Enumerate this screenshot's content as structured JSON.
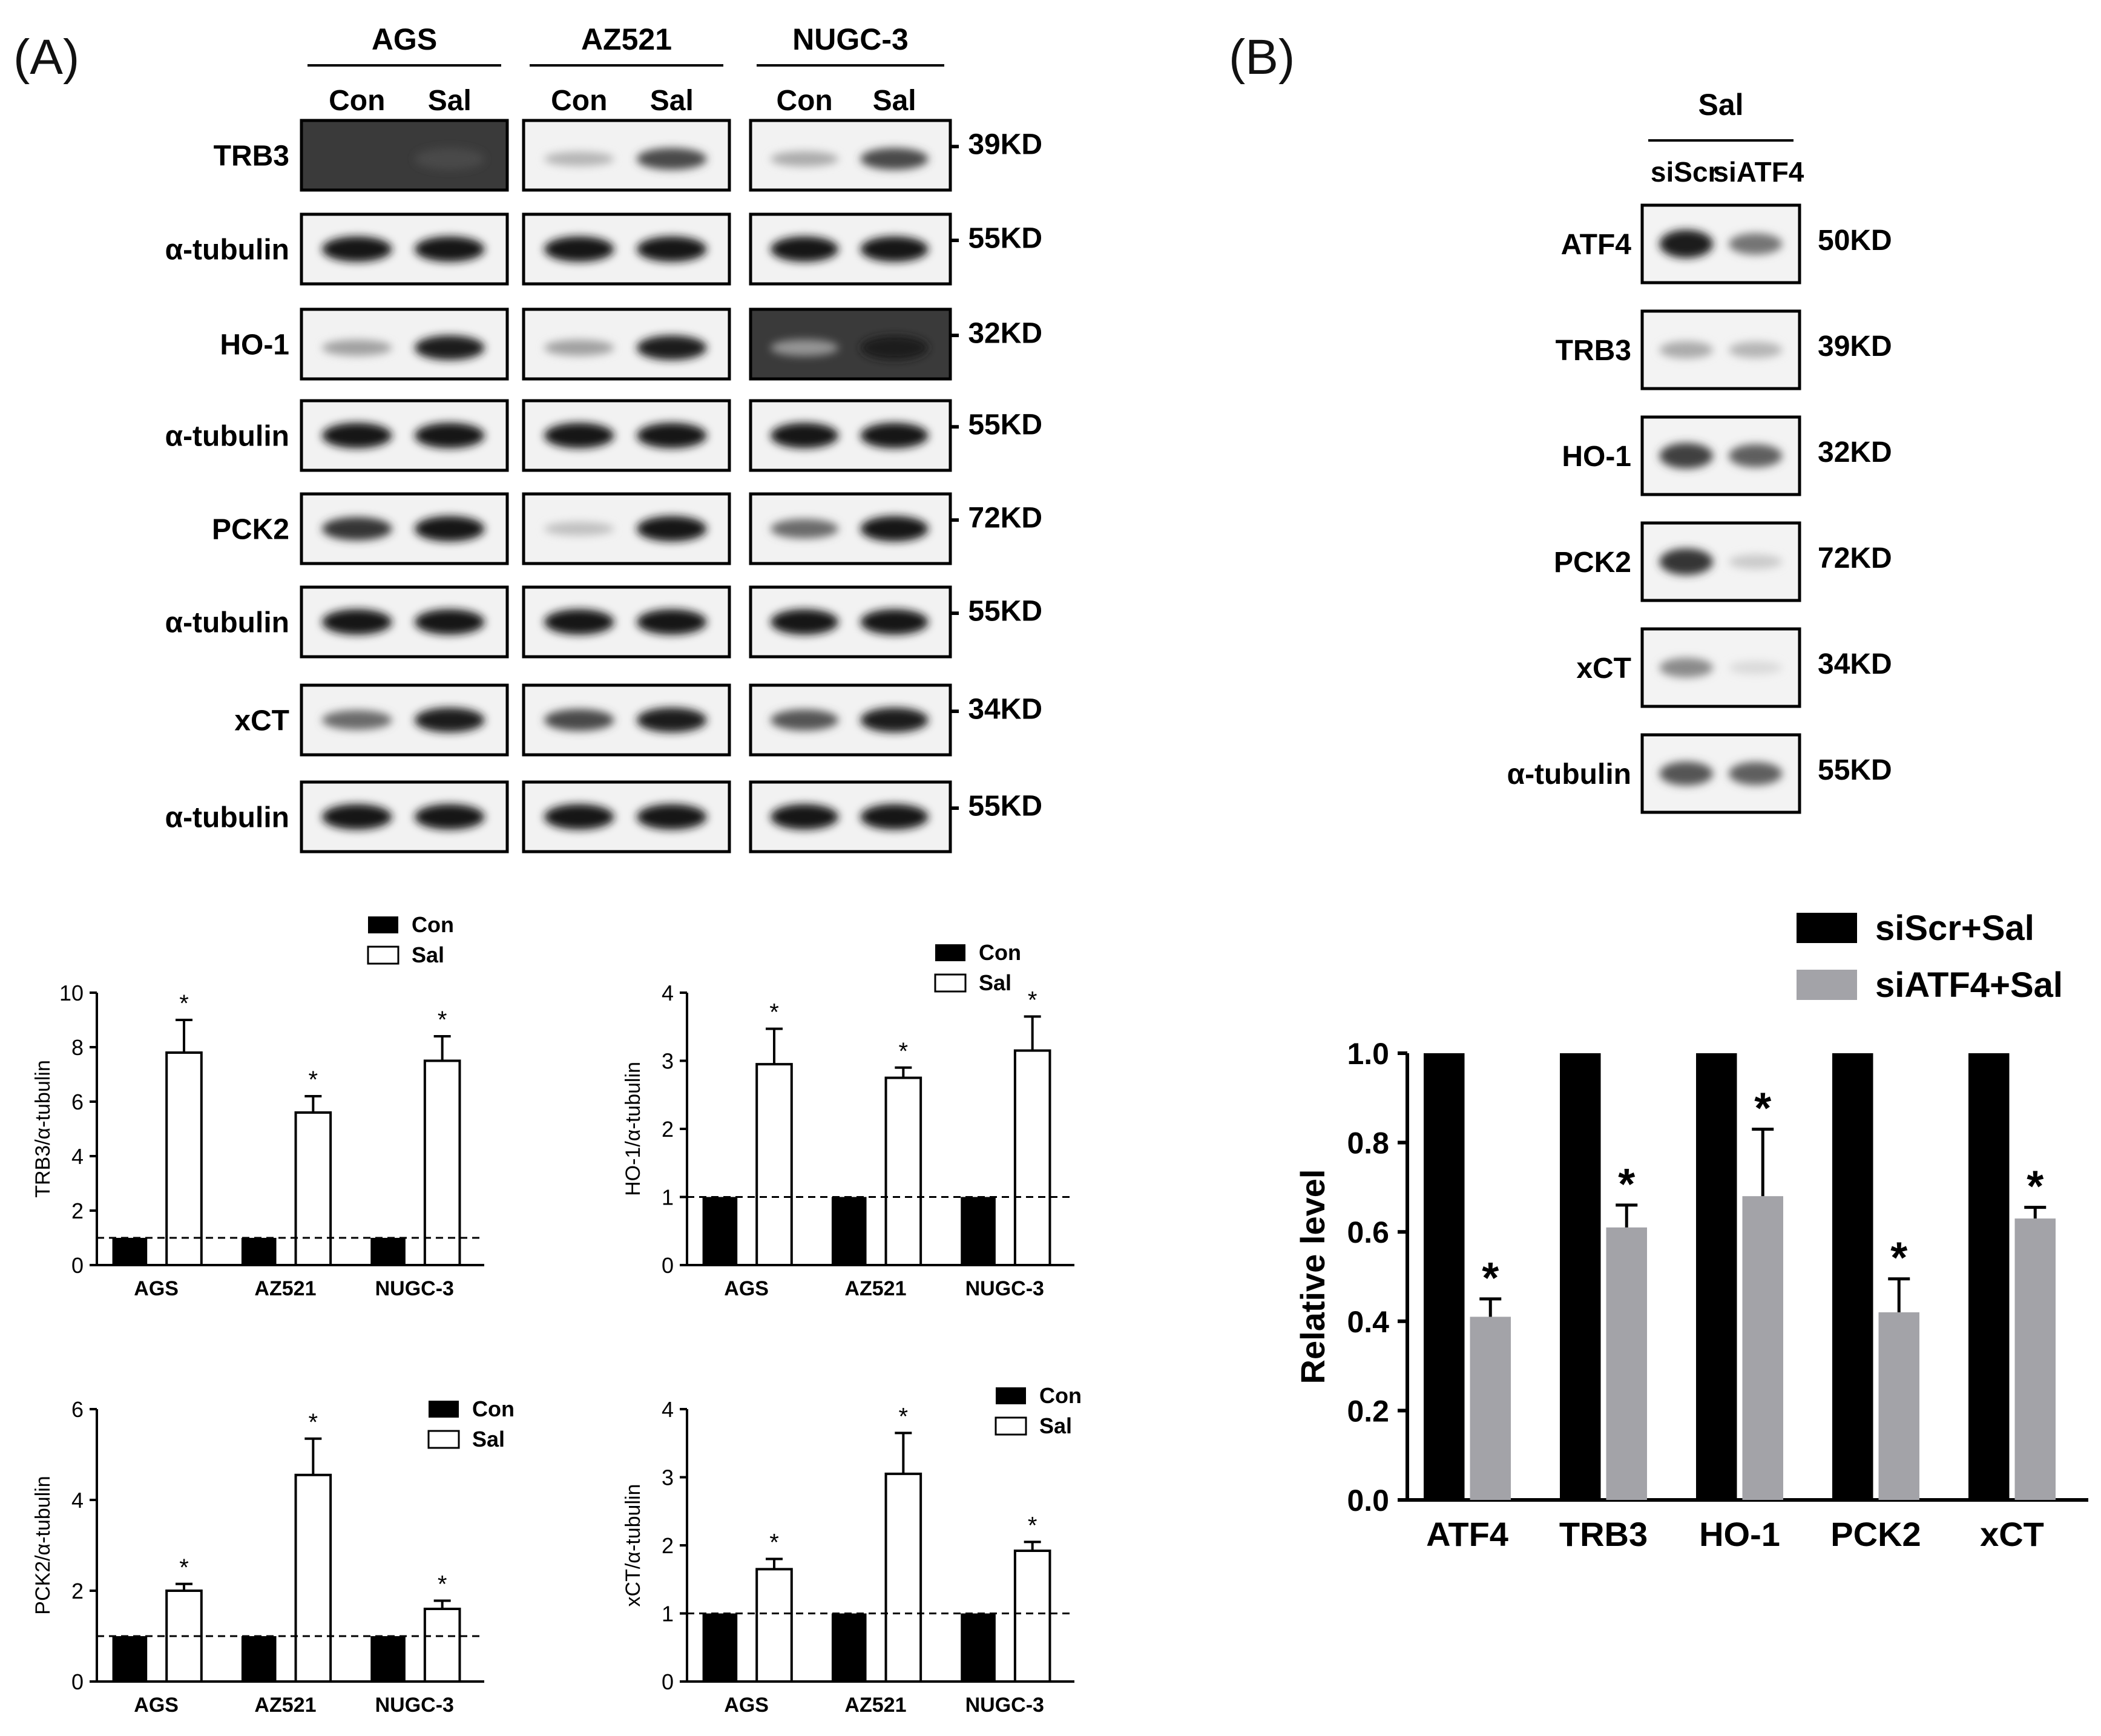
{
  "panel_labels": [
    "(A)",
    "(B)"
  ],
  "blot_a": {
    "cell_lines": [
      "AGS",
      "AZ521",
      "NUGC-3"
    ],
    "lanes": [
      "Con",
      "Sal"
    ],
    "rows": [
      {
        "protein": "TRB3",
        "kd": "- 39KD",
        "sal": 0.75,
        "con": [
          0.0,
          0.25,
          0.3
        ]
      },
      {
        "protein": "α-tubulin",
        "kd": "- 55KD",
        "sal": 1.0,
        "con": [
          1.0,
          1.0,
          1.0
        ]
      },
      {
        "protein": "HO-1",
        "kd": "- 32KD",
        "sal": 0.95,
        "con": [
          0.35,
          0.35,
          0.4
        ]
      },
      {
        "protein": "α-tubulin",
        "kd": "- 55KD",
        "sal": 1.0,
        "con": [
          1.0,
          1.0,
          1.0
        ]
      },
      {
        "protein": "PCK2",
        "kd": "- 72KD",
        "sal": 1.0,
        "con": [
          0.85,
          0.2,
          0.6
        ]
      },
      {
        "protein": "α-tubulin",
        "kd": "- 55KD",
        "sal": 1.0,
        "con": [
          1.0,
          1.0,
          1.0
        ]
      },
      {
        "protein": "xCT",
        "kd": "- 34KD",
        "sal": 0.95,
        "con": [
          0.6,
          0.75,
          0.7
        ]
      },
      {
        "protein": "α-tubulin",
        "kd": "- 55KD",
        "sal": 1.0,
        "con": [
          1.0,
          1.0,
          1.0
        ]
      }
    ]
  },
  "blot_b": {
    "group": "Sal",
    "lanes": [
      "siScr",
      "siATF4"
    ],
    "rows": [
      {
        "protein": "ATF4",
        "kd": "50KD",
        "bands": [
          0.95,
          0.55
        ]
      },
      {
        "protein": "TRB3",
        "kd": "39KD",
        "bands": [
          0.3,
          0.25
        ]
      },
      {
        "protein": "HO-1",
        "kd": "32KD",
        "bands": [
          0.8,
          0.65
        ]
      },
      {
        "protein": "PCK2",
        "kd": "72KD",
        "bands": [
          0.85,
          0.15
        ]
      },
      {
        "protein": "xCT",
        "kd": "34KD",
        "bands": [
          0.45,
          0.08
        ]
      },
      {
        "protein": "α-tubulin",
        "kd": "55KD",
        "bands": [
          0.7,
          0.65
        ]
      }
    ]
  },
  "chart_data": [
    {
      "type": "bar",
      "categories": [
        "AGS",
        "AZ521",
        "NUGC-3"
      ],
      "series": [
        {
          "name": "Con",
          "values": [
            1,
            1,
            1
          ],
          "errors": [
            0,
            0,
            0
          ]
        },
        {
          "name": "Sal",
          "values": [
            7.8,
            5.6,
            7.5
          ],
          "errors": [
            1.2,
            0.6,
            0.9
          ]
        }
      ],
      "significance": [
        "*",
        "*",
        "*"
      ],
      "ylabel": "TRB3/α-tubulin",
      "yticks": [
        "0",
        "2",
        "4",
        "6",
        "8",
        "10"
      ],
      "ylim": [
        0,
        10
      ],
      "reference_line": 1,
      "legend": "top-right"
    },
    {
      "type": "bar",
      "categories": [
        "AGS",
        "AZ521",
        "NUGC-3"
      ],
      "series": [
        {
          "name": "Con",
          "values": [
            1,
            1,
            1
          ],
          "errors": [
            0,
            0,
            0
          ]
        },
        {
          "name": "Sal",
          "values": [
            2.95,
            2.75,
            3.15
          ],
          "errors": [
            0.52,
            0.15,
            0.5
          ]
        }
      ],
      "significance": [
        "*",
        "*",
        "*"
      ],
      "ylabel": "HO-1/α-tubulin",
      "yticks": [
        "0",
        "1",
        "2",
        "3",
        "4"
      ],
      "ylim": [
        0,
        4
      ],
      "reference_line": 1,
      "legend": "top-right"
    },
    {
      "type": "bar",
      "categories": [
        "AGS",
        "AZ521",
        "NUGC-3"
      ],
      "series": [
        {
          "name": "Con",
          "values": [
            1,
            1,
            1
          ],
          "errors": [
            0,
            0,
            0
          ]
        },
        {
          "name": "Sal",
          "values": [
            2.0,
            4.55,
            1.6
          ],
          "errors": [
            0.15,
            0.8,
            0.18
          ]
        }
      ],
      "significance": [
        "*",
        "*",
        "*"
      ],
      "ylabel": "PCK2/α-tubulin",
      "yticks": [
        "0",
        "2",
        "4",
        "6"
      ],
      "ylim": [
        0,
        6
      ],
      "reference_line": 1,
      "legend": "top-right"
    },
    {
      "type": "bar",
      "categories": [
        "AGS",
        "AZ521",
        "NUGC-3"
      ],
      "series": [
        {
          "name": "Con",
          "values": [
            1,
            1,
            1
          ],
          "errors": [
            0,
            0,
            0
          ]
        },
        {
          "name": "Sal",
          "values": [
            1.65,
            3.05,
            1.92
          ],
          "errors": [
            0.15,
            0.6,
            0.13
          ]
        }
      ],
      "significance": [
        "*",
        "*",
        "*"
      ],
      "ylabel": "xCT/α-tubulin",
      "yticks": [
        "0",
        "1",
        "2",
        "3",
        "4"
      ],
      "ylim": [
        0,
        4
      ],
      "reference_line": 1,
      "legend": "top-right"
    },
    {
      "type": "bar",
      "categories": [
        "ATF4",
        "TRB3",
        "HO-1",
        "PCK2",
        "xCT"
      ],
      "series": [
        {
          "name": "siScr+Sal",
          "values": [
            1.0,
            1.0,
            1.0,
            1.0,
            1.0
          ],
          "errors": [
            0,
            0,
            0,
            0,
            0
          ]
        },
        {
          "name": "siATF4+Sal",
          "values": [
            0.41,
            0.61,
            0.68,
            0.42,
            0.63
          ],
          "errors": [
            0.04,
            0.05,
            0.15,
            0.075,
            0.025
          ]
        }
      ],
      "significance": [
        "*",
        "*",
        "*",
        "*",
        "*"
      ],
      "ylabel": "Relative level",
      "yticks": [
        "0.0",
        "0.2",
        "0.4",
        "0.6",
        "0.8",
        "1.0"
      ],
      "ylim": [
        0,
        1
      ],
      "legend": "top"
    }
  ]
}
